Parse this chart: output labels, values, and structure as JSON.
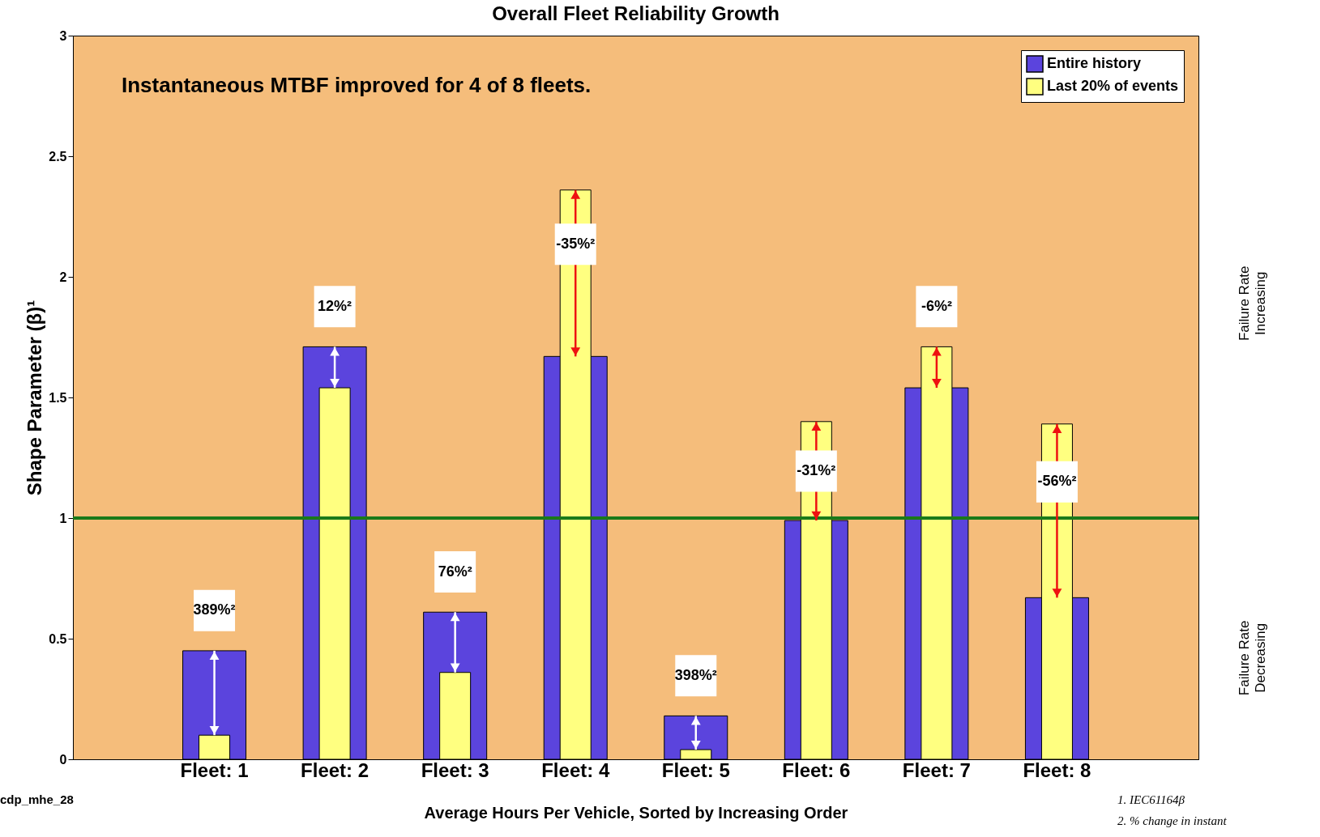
{
  "chart_data": {
    "type": "bar",
    "title": "Overall Fleet Reliability Growth",
    "xlabel": "Average Hours Per Vehicle, Sorted by Increasing Order",
    "ylabel": "Shape Parameter (β)¹",
    "categories": [
      "Fleet: 1",
      "Fleet: 2",
      "Fleet: 3",
      "Fleet: 4",
      "Fleet: 5",
      "Fleet: 6",
      "Fleet: 7",
      "Fleet: 8"
    ],
    "series": [
      {
        "name": "Entire history",
        "color": "#5b44dd",
        "values": [
          0.45,
          1.71,
          0.61,
          1.67,
          0.18,
          0.99,
          1.54,
          0.67
        ]
      },
      {
        "name": "Last 20% of events",
        "color": "#ffff80",
        "values": [
          0.1,
          1.54,
          0.36,
          2.36,
          0.04,
          1.4,
          1.71,
          1.39
        ]
      }
    ],
    "ylim": [
      0,
      3
    ],
    "yticks": [
      0,
      0.5,
      1,
      1.5,
      2,
      2.5,
      3
    ],
    "legend": "top right",
    "grid": false,
    "ref_lines": [
      {
        "axis": "y",
        "value": 1,
        "color": "#1a7a1a"
      }
    ],
    "annotations": [
      "389%²",
      "12%²",
      "76%²",
      "-35%²",
      "398%²",
      "-31%²",
      "-6%²",
      "-56%²",
      "Instantaneous MTBF improved for 4 of 8 fleets.",
      "Failure Rate Increasing",
      "Failure Rate Decreasing",
      "cdp_mhe_28",
      "1. IEC61164β",
      "2. % change in instant"
    ]
  }
}
